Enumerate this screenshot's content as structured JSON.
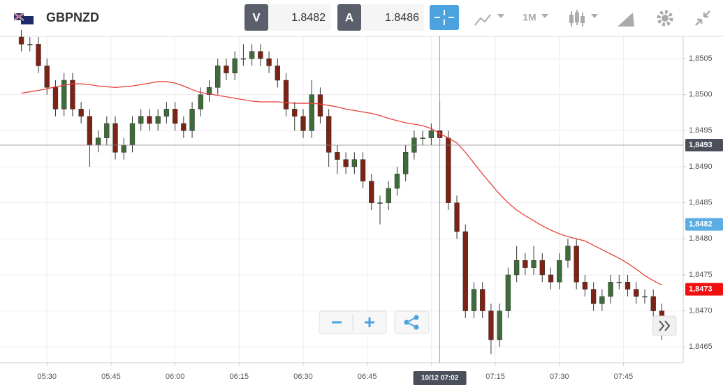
{
  "header": {
    "symbol": "GBPNZD",
    "bid_label": "V",
    "bid": 1.8482,
    "ask_label": "A",
    "ask": 1.8486,
    "timeframe": "1M"
  },
  "chart_data": {
    "type": "candlestick",
    "x": [
      "05:24",
      "05:26",
      "05:28",
      "05:30",
      "05:32",
      "05:34",
      "05:36",
      "05:38",
      "05:40",
      "05:42",
      "05:44",
      "05:46",
      "05:48",
      "05:50",
      "05:52",
      "05:54",
      "05:56",
      "05:58",
      "06:00",
      "06:02",
      "06:04",
      "06:06",
      "06:08",
      "06:10",
      "06:12",
      "06:14",
      "06:16",
      "06:18",
      "06:20",
      "06:22",
      "06:24",
      "06:26",
      "06:28",
      "06:30",
      "06:32",
      "06:34",
      "06:36",
      "06:38",
      "06:40",
      "06:42",
      "06:44",
      "06:46",
      "06:48",
      "06:50",
      "06:52",
      "06:54",
      "06:56",
      "06:58",
      "07:00",
      "07:02",
      "07:04",
      "07:06",
      "07:08",
      "07:10",
      "07:12",
      "07:14",
      "07:16",
      "07:18",
      "07:20",
      "07:22",
      "07:24",
      "07:26",
      "07:28",
      "07:30",
      "07:32",
      "07:34",
      "07:36",
      "07:38",
      "07:40",
      "07:42",
      "07:44",
      "07:46",
      "07:48",
      "07:50",
      "07:52",
      "07:54"
    ],
    "open": [
      1.8508,
      1.8507,
      1.8507,
      1.8504,
      1.8501,
      1.8498,
      1.8502,
      1.8498,
      1.8497,
      1.8493,
      1.8494,
      1.8496,
      1.8492,
      1.8493,
      1.8496,
      1.8497,
      1.8496,
      1.8497,
      1.8498,
      1.8496,
      1.8495,
      1.8498,
      1.85,
      1.8501,
      1.8504,
      1.8503,
      1.8505,
      1.8505,
      1.8506,
      1.8505,
      1.8504,
      1.8502,
      1.8498,
      1.8497,
      1.8495,
      1.85,
      1.8497,
      1.8492,
      1.8491,
      1.849,
      1.8491,
      1.8488,
      1.8485,
      1.8485,
      1.8487,
      1.8489,
      1.8492,
      1.8494,
      1.8494,
      1.8495,
      1.8494,
      1.8485,
      1.8481,
      1.847,
      1.8473,
      1.847,
      1.8466,
      1.847,
      1.8475,
      1.8477,
      1.8476,
      1.8477,
      1.8475,
      1.8474,
      1.8477,
      1.8479,
      1.8474,
      1.8473,
      1.8471,
      1.8472,
      1.8474,
      1.8474,
      1.8473,
      1.8472,
      1.8472,
      1.847
    ],
    "high": [
      1.8509,
      1.8508,
      1.8508,
      1.8505,
      1.8502,
      1.8503,
      1.8503,
      1.8499,
      1.8498,
      1.8495,
      1.8497,
      1.8497,
      1.8494,
      1.8497,
      1.8498,
      1.8498,
      1.8498,
      1.8499,
      1.8499,
      1.8497,
      1.8499,
      1.8501,
      1.8502,
      1.8505,
      1.8505,
      1.8506,
      1.8507,
      1.8507,
      1.8507,
      1.8506,
      1.8505,
      1.8503,
      1.8499,
      1.8498,
      1.8502,
      1.8501,
      1.8498,
      1.8493,
      1.8492,
      1.8492,
      1.8492,
      1.8489,
      1.8486,
      1.8488,
      1.849,
      1.8493,
      1.8495,
      1.8495,
      1.8496,
      1.8499,
      1.8495,
      1.8486,
      1.8482,
      1.8474,
      1.8474,
      1.8471,
      1.8471,
      1.8476,
      1.8479,
      1.8478,
      1.8479,
      1.8478,
      1.8476,
      1.8478,
      1.848,
      1.848,
      1.8475,
      1.8474,
      1.8473,
      1.8475,
      1.8475,
      1.8475,
      1.8474,
      1.8473,
      1.8473,
      1.8471
    ],
    "low": [
      1.8506,
      1.8506,
      1.8503,
      1.85,
      1.8497,
      1.8497,
      1.8497,
      1.8496,
      1.849,
      1.8492,
      1.8493,
      1.8491,
      1.8491,
      1.8492,
      1.8495,
      1.8495,
      1.8495,
      1.8496,
      1.8495,
      1.8494,
      1.8494,
      1.8497,
      1.8499,
      1.85,
      1.8502,
      1.8502,
      1.8504,
      1.8504,
      1.8504,
      1.8503,
      1.8501,
      1.8497,
      1.8495,
      1.8494,
      1.8494,
      1.8496,
      1.849,
      1.8489,
      1.8489,
      1.8489,
      1.8487,
      1.8484,
      1.8482,
      1.8484,
      1.8486,
      1.8488,
      1.8491,
      1.8493,
      1.8493,
      1.8493,
      1.8484,
      1.848,
      1.8469,
      1.8469,
      1.8469,
      1.8464,
      1.8465,
      1.8469,
      1.8474,
      1.8475,
      1.8475,
      1.8474,
      1.8473,
      1.8473,
      1.8476,
      1.8473,
      1.8472,
      1.847,
      1.847,
      1.8471,
      1.8473,
      1.8472,
      1.8471,
      1.8471,
      1.8469,
      1.8466
    ],
    "close": [
      1.8507,
      1.8507,
      1.8504,
      1.8501,
      1.8498,
      1.8502,
      1.8498,
      1.8497,
      1.8493,
      1.8494,
      1.8496,
      1.8492,
      1.8493,
      1.8496,
      1.8497,
      1.8496,
      1.8497,
      1.8498,
      1.8496,
      1.8495,
      1.8498,
      1.85,
      1.8501,
      1.8504,
      1.8503,
      1.8505,
      1.8505,
      1.8506,
      1.8505,
      1.8504,
      1.8502,
      1.8498,
      1.8497,
      1.8495,
      1.85,
      1.8497,
      1.8492,
      1.8491,
      1.849,
      1.8491,
      1.8488,
      1.8485,
      1.8485,
      1.8487,
      1.8489,
      1.8492,
      1.8494,
      1.8494,
      1.8495,
      1.8494,
      1.8485,
      1.8481,
      1.847,
      1.8473,
      1.847,
      1.8466,
      1.847,
      1.8475,
      1.8477,
      1.8476,
      1.8477,
      1.8475,
      1.8474,
      1.8477,
      1.8479,
      1.8474,
      1.8473,
      1.8471,
      1.8472,
      1.8474,
      1.8474,
      1.8473,
      1.8472,
      1.8472,
      1.847,
      1.8467
    ],
    "up_color": "#3e6b3a",
    "down_color": "#7d2316",
    "overlays": [
      {
        "type": "line",
        "color": "#e8413a",
        "values": [
          1.85002,
          1.85004,
          1.85006,
          1.85008,
          1.85011,
          1.85013,
          1.85015,
          1.85015,
          1.85014,
          1.85012,
          1.85011,
          1.8501,
          1.85011,
          1.85012,
          1.85014,
          1.85016,
          1.85018,
          1.85018,
          1.85016,
          1.85012,
          1.85007,
          1.85003,
          1.85001,
          1.84999,
          1.84997,
          1.84995,
          1.84993,
          1.84991,
          1.8499,
          1.8499,
          1.8499,
          1.84989,
          1.84988,
          1.84988,
          1.84988,
          1.84987,
          1.84985,
          1.84983,
          1.8498,
          1.84978,
          1.84976,
          1.84974,
          1.84971,
          1.84967,
          1.84964,
          1.84961,
          1.84959,
          1.84957,
          1.84953,
          1.84946,
          1.8494,
          1.84933,
          1.8492,
          1.84905,
          1.8489,
          1.84876,
          1.84862,
          1.8485,
          1.8484,
          1.84832,
          1.84825,
          1.84818,
          1.84812,
          1.84807,
          1.84803,
          1.848,
          1.84797,
          1.84791,
          1.84785,
          1.84779,
          1.84773,
          1.84766,
          1.84758,
          1.84749,
          1.84742,
          1.84736
        ]
      }
    ],
    "xlim": [
      "05:19",
      "07:59"
    ],
    "xticks": [
      "05:30",
      "05:45",
      "06:00",
      "06:15",
      "06:30",
      "06:45",
      "07:00",
      "07:15",
      "07:30",
      "07:45"
    ],
    "ylim": [
      1.84628,
      1.85081
    ],
    "yticks": [
      {
        "value": 1.8465,
        "label": "1,8465"
      },
      {
        "value": 1.847,
        "label": "1,8470"
      },
      {
        "value": 1.8475,
        "label": "1,8475"
      },
      {
        "value": 1.848,
        "label": "1,8480"
      },
      {
        "value": 1.8485,
        "label": "1,8485"
      },
      {
        "value": 1.849,
        "label": "1,8490"
      },
      {
        "value": 1.8495,
        "label": "1,8495"
      },
      {
        "value": 1.85,
        "label": "1,8500"
      },
      {
        "value": 1.8505,
        "label": "1,8505"
      }
    ],
    "grid": true,
    "crosshair": {
      "x": "07:02",
      "x_label": "10/12 07:02",
      "value": 1.8493,
      "label": "1,8493"
    },
    "price_labels": [
      {
        "value": 1.8482,
        "label": "1,8482",
        "color": "#5aaee3"
      },
      {
        "value": 1.8473,
        "label": "1,8473",
        "color": "#f01010"
      }
    ]
  }
}
